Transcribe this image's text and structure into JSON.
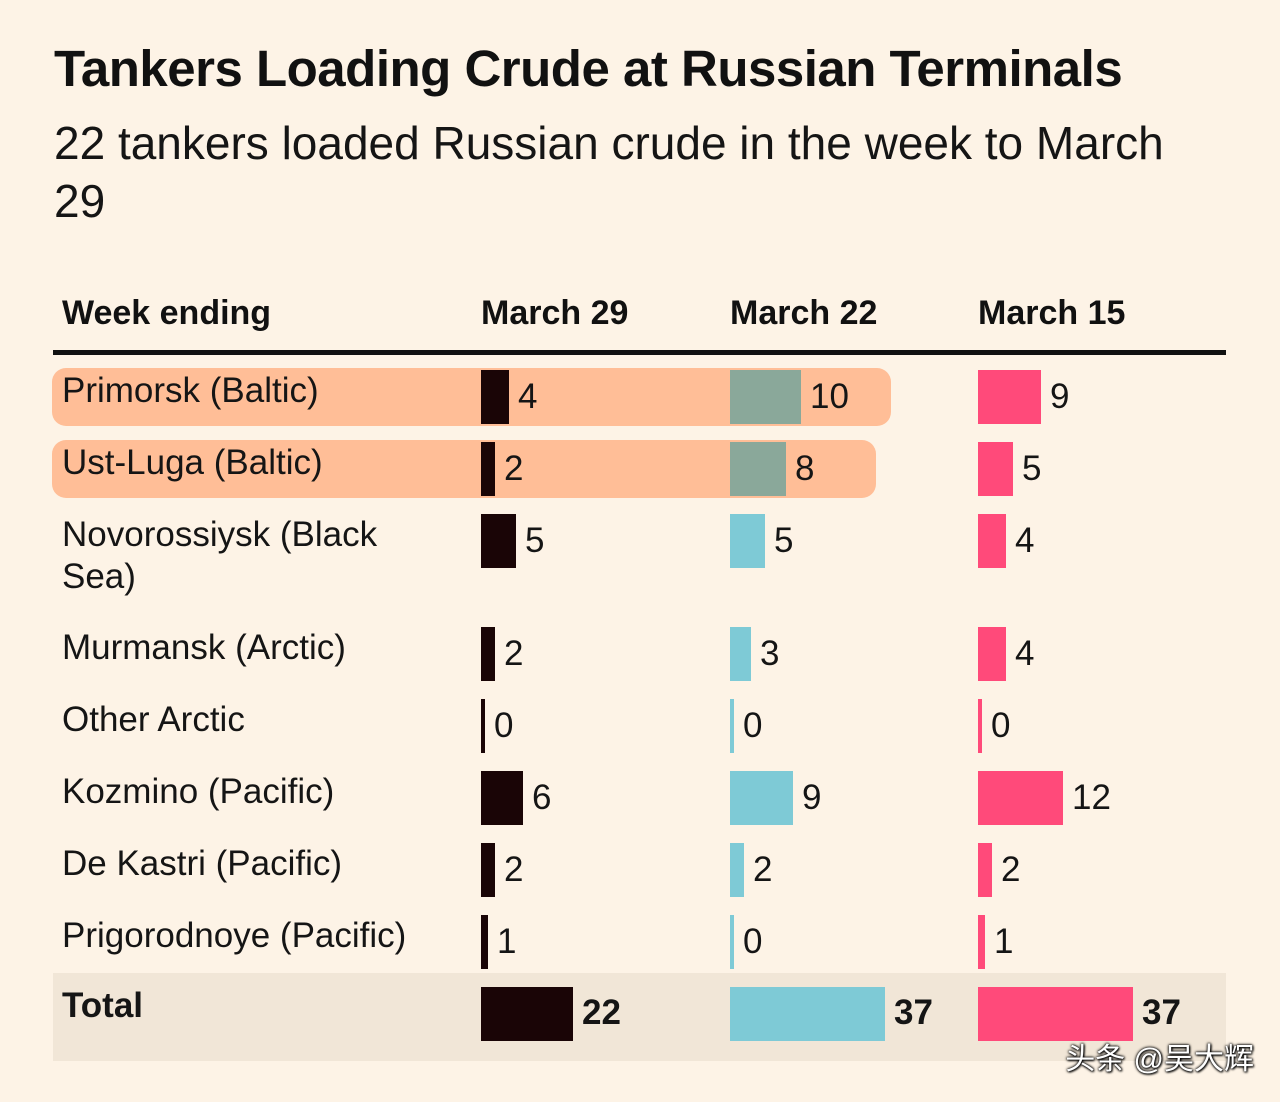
{
  "chart_data": {
    "type": "bar",
    "title": "Tankers Loading Crude at Russian Terminals",
    "subtitle": "22 tankers loaded Russian crude in the week to March 29",
    "row_header": "Week ending",
    "columns": [
      {
        "name": "March 29",
        "color": "#1a0506"
      },
      {
        "name": "March 22",
        "color": "#7ecad6"
      },
      {
        "name": "March 15",
        "color": "#ff4a7a"
      }
    ],
    "highlight_color": "#ffbb92",
    "highlighted_bar_color": "#8aa89a",
    "rows": [
      {
        "label": "Primorsk (Baltic)",
        "values": [
          4,
          10,
          9
        ],
        "highlighted": true
      },
      {
        "label": "Ust-Luga (Baltic)",
        "values": [
          2,
          8,
          5
        ],
        "highlighted": true
      },
      {
        "label": "Novorossiysk (Black Sea)",
        "values": [
          5,
          5,
          4
        ],
        "highlighted": false
      },
      {
        "label": "Murmansk (Arctic)",
        "values": [
          2,
          3,
          4
        ],
        "highlighted": false
      },
      {
        "label": "Other Arctic",
        "values": [
          0,
          0,
          0
        ],
        "highlighted": false
      },
      {
        "label": "Kozmino (Pacific)",
        "values": [
          6,
          9,
          12
        ],
        "highlighted": false
      },
      {
        "label": "De Kastri (Pacific)",
        "values": [
          2,
          2,
          2
        ],
        "highlighted": false
      },
      {
        "label": "Prigorodnoye (Pacific)",
        "values": [
          1,
          0,
          1
        ],
        "highlighted": false
      }
    ],
    "total": {
      "label": "Total",
      "values": [
        22,
        37,
        37
      ]
    }
  },
  "watermark": "头条 @吴大辉"
}
